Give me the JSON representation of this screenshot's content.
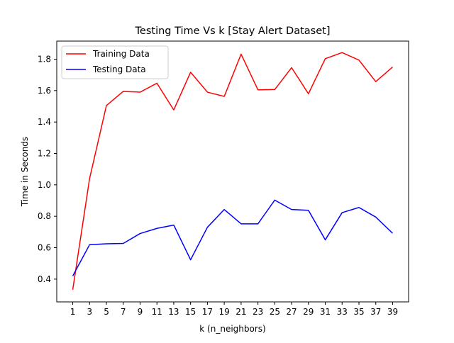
{
  "chart_data": {
    "type": "line",
    "title": "Testing Time Vs k [Stay Alert Dataset]",
    "xlabel": "k (n_neighbors)",
    "ylabel": "Time in Seconds",
    "x": [
      1,
      3,
      5,
      7,
      9,
      11,
      13,
      15,
      17,
      19,
      21,
      23,
      25,
      27,
      29,
      31,
      33,
      35,
      37,
      39
    ],
    "xlim": [
      -0.9,
      40.9
    ],
    "ylim": [
      0.255,
      1.915
    ],
    "yticks": [
      0.4,
      0.6,
      0.8,
      1.0,
      1.2,
      1.4,
      1.6,
      1.8
    ],
    "ytick_labels": [
      "0.4",
      "0.6",
      "0.8",
      "1.0",
      "1.2",
      "1.4",
      "1.6",
      "1.8"
    ],
    "xtick_labels": [
      "1",
      "3",
      "5",
      "7",
      "9",
      "11",
      "13",
      "15",
      "17",
      "19",
      "21",
      "23",
      "25",
      "27",
      "29",
      "31",
      "33",
      "35",
      "37",
      "39"
    ],
    "grid": false,
    "legend_position": "top-left",
    "series": [
      {
        "name": "Training Data",
        "color": "#ff0000",
        "values": [
          0.333,
          1.04,
          1.505,
          1.595,
          1.59,
          1.647,
          1.477,
          1.717,
          1.59,
          1.563,
          1.832,
          1.605,
          1.607,
          1.746,
          1.58,
          1.803,
          1.842,
          1.794,
          1.657,
          1.75
        ]
      },
      {
        "name": "Testing Data",
        "color": "#0000ff",
        "values": [
          0.42,
          0.619,
          0.625,
          0.627,
          0.69,
          0.723,
          0.744,
          0.523,
          0.73,
          0.843,
          0.752,
          0.752,
          0.903,
          0.843,
          0.838,
          0.65,
          0.823,
          0.856,
          0.795,
          0.692
        ]
      }
    ]
  }
}
